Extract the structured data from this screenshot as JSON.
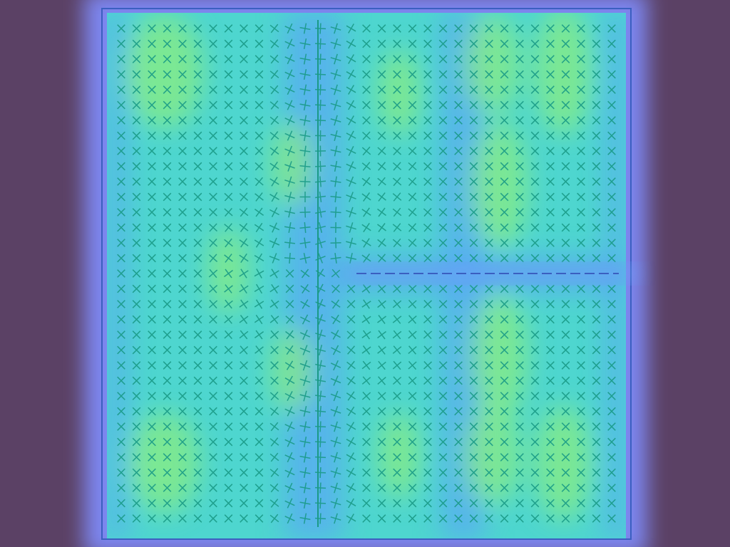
{
  "colors": {
    "background": "#5b4165",
    "frame_glow": "#7d86f0",
    "field_low": "#5aa8f4",
    "field_mid": "#3fe0c0",
    "field_high": "#8ef07a",
    "glyph": "#1a9a86",
    "frame_line": "#3b5fc0",
    "crack": "#3b5fc0"
  },
  "scene": {
    "description_visible_text": ""
  }
}
